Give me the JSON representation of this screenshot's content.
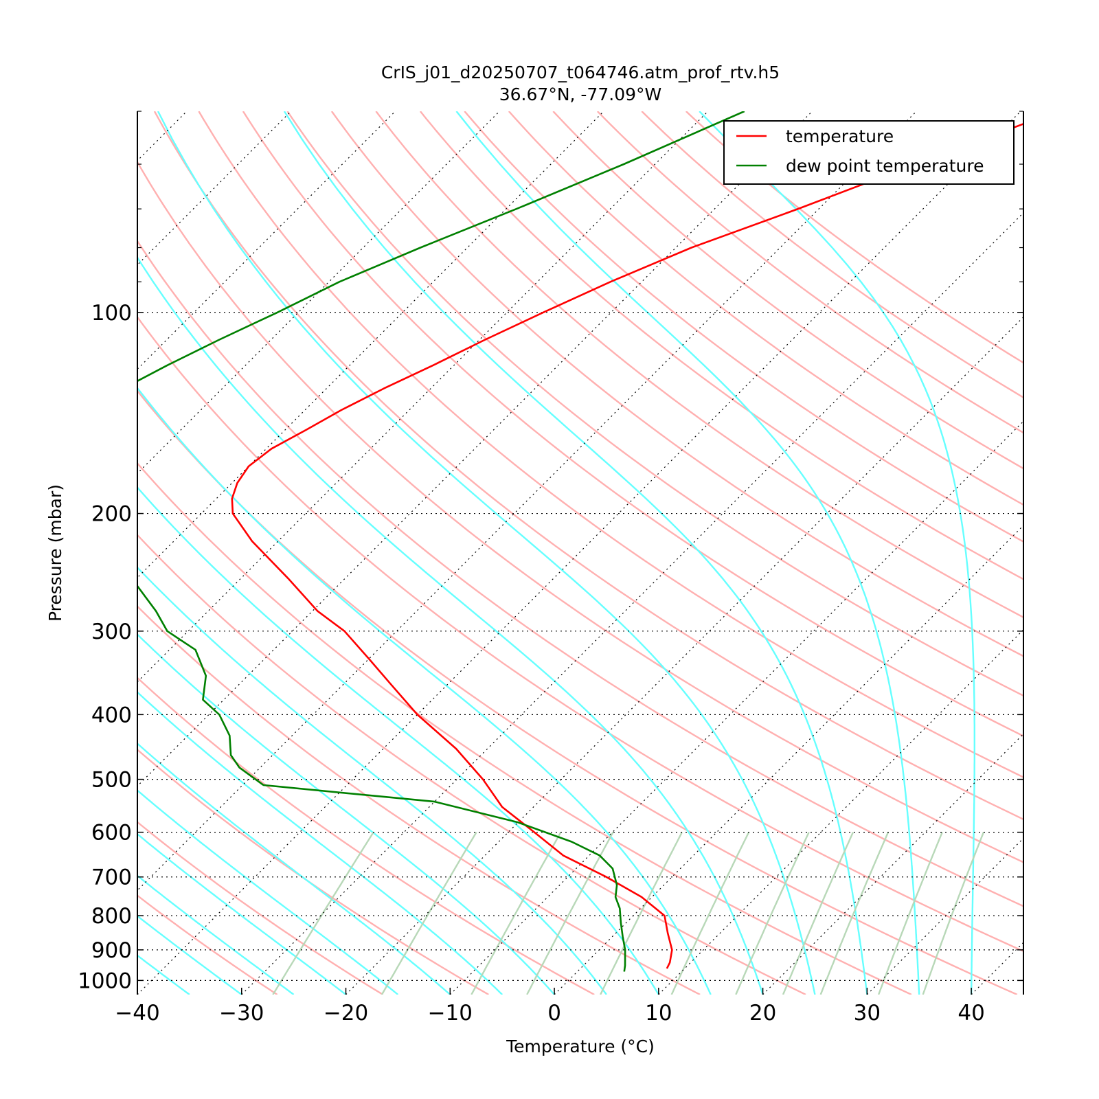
{
  "chart_data": {
    "type": "line",
    "title": "CrIS_j01_d20250707_t064746.atm_prof_rtv.h5",
    "subtitle": "36.67°N, -77.09°W",
    "xlabel": "Temperature (°C)",
    "ylabel": "Pressure (mbar)",
    "xlim": [
      -40,
      45
    ],
    "ylim": [
      1050,
      50
    ],
    "y_scale": "log",
    "skew": "skew-T",
    "grid": true,
    "legend_position": "top-right",
    "x_ticks": [
      {
        "value": -40,
        "label": "−40"
      },
      {
        "value": -30,
        "label": "−30"
      },
      {
        "value": -20,
        "label": "−20"
      },
      {
        "value": -10,
        "label": "−10"
      },
      {
        "value": 0,
        "label": "0"
      },
      {
        "value": 10,
        "label": "10"
      },
      {
        "value": 20,
        "label": "20"
      },
      {
        "value": 30,
        "label": "30"
      },
      {
        "value": 40,
        "label": "40"
      }
    ],
    "y_ticks": [
      {
        "value": 100,
        "label": "100"
      },
      {
        "value": 200,
        "label": "200"
      },
      {
        "value": 300,
        "label": "300"
      },
      {
        "value": 400,
        "label": "400"
      },
      {
        "value": 500,
        "label": "500"
      },
      {
        "value": 600,
        "label": "600"
      },
      {
        "value": 700,
        "label": "700"
      },
      {
        "value": 800,
        "label": "800"
      },
      {
        "value": 900,
        "label": "900"
      },
      {
        "value": 1000,
        "label": "1000"
      }
    ],
    "series": [
      {
        "name": "temperature",
        "color": "#ff0000",
        "points": [
          [
            50,
            -36.5
          ],
          [
            60,
            -45.0
          ],
          [
            70,
            -52.0
          ],
          [
            80,
            -58.5
          ],
          [
            90,
            -63.0
          ],
          [
            100,
            -66.5
          ],
          [
            110,
            -69.5
          ],
          [
            120,
            -72.0
          ],
          [
            130,
            -74.5
          ],
          [
            140,
            -76.5
          ],
          [
            150,
            -78.0
          ],
          [
            160,
            -79.5
          ],
          [
            170,
            -80.0
          ],
          [
            180,
            -79.5
          ],
          [
            190,
            -78.5
          ],
          [
            200,
            -77.0
          ],
          [
            220,
            -72.5
          ],
          [
            250,
            -65.5
          ],
          [
            280,
            -59.5
          ],
          [
            300,
            -55.0
          ],
          [
            330,
            -50.0
          ],
          [
            360,
            -45.5
          ],
          [
            400,
            -40.0
          ],
          [
            450,
            -33.0
          ],
          [
            500,
            -27.5
          ],
          [
            550,
            -23.0
          ],
          [
            600,
            -17.5
          ],
          [
            650,
            -12.5
          ],
          [
            700,
            -6.3
          ],
          [
            750,
            -1.0
          ],
          [
            800,
            3.0
          ],
          [
            850,
            5.0
          ],
          [
            900,
            7.0
          ],
          [
            940,
            8.0
          ],
          [
            960,
            8.3
          ]
        ]
      },
      {
        "name": "dew point temperature",
        "color": "#008000",
        "points": [
          [
            50,
            -66.5
          ],
          [
            60,
            -73.0
          ],
          [
            70,
            -79.0
          ],
          [
            80,
            -84.5
          ],
          [
            90,
            -89.0
          ],
          [
            100,
            -92.0
          ],
          [
            110,
            -95.0
          ],
          [
            120,
            -97.5
          ],
          [
            130,
            -99.5
          ],
          [
            140,
            -101.0
          ],
          [
            150,
            -102.0
          ],
          [
            160,
            -101.0
          ],
          [
            170,
            -99.0
          ],
          [
            180,
            -96.5
          ],
          [
            200,
            -92.0
          ],
          [
            220,
            -87.0
          ],
          [
            250,
            -80.5
          ],
          [
            280,
            -75.0
          ],
          [
            300,
            -72.0
          ],
          [
            320,
            -67.5
          ],
          [
            350,
            -64.0
          ],
          [
            380,
            -62.0
          ],
          [
            400,
            -59.0
          ],
          [
            430,
            -56.0
          ],
          [
            460,
            -54.0
          ],
          [
            480,
            -52.0
          ],
          [
            510,
            -48.0
          ],
          [
            540,
            -30.0
          ],
          [
            580,
            -20.0
          ],
          [
            620,
            -13.0
          ],
          [
            650,
            -9.0
          ],
          [
            680,
            -6.5
          ],
          [
            720,
            -4.5
          ],
          [
            750,
            -3.5
          ],
          [
            780,
            -2.0
          ],
          [
            820,
            -0.5
          ],
          [
            860,
            1.0
          ],
          [
            900,
            2.5
          ],
          [
            950,
            4.0
          ],
          [
            970,
            4.5
          ]
        ]
      }
    ]
  }
}
